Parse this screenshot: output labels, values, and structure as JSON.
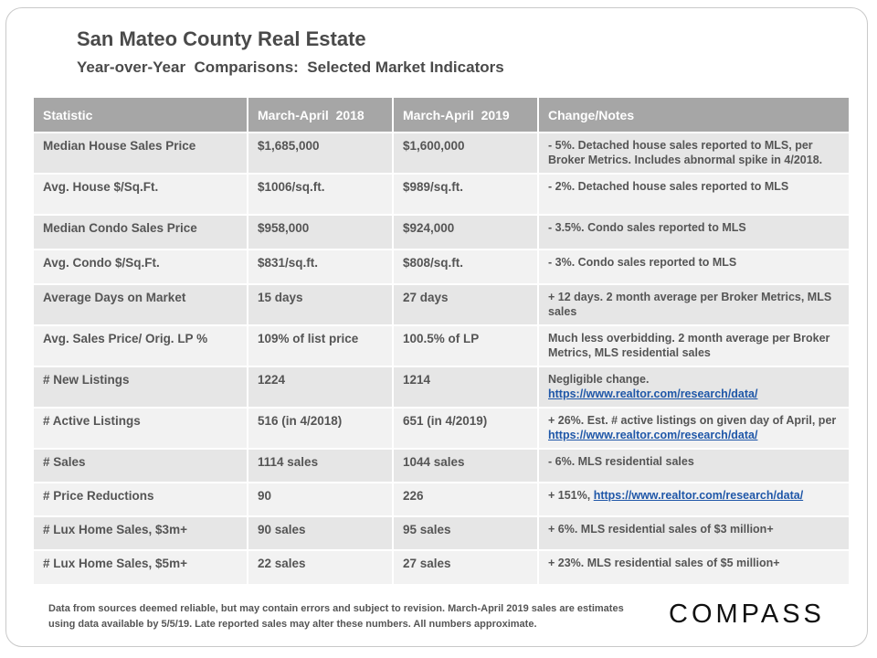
{
  "header": {
    "title": "San Mateo County Real Estate",
    "subtitle": "Year-over-Year  Comparisons:  Selected Market Indicators"
  },
  "table": {
    "columns": [
      "Statistic",
      "March-April  2018",
      "March-April  2019",
      "Change/Notes"
    ],
    "rows": [
      {
        "stat": "Median House Sales Price",
        "y2018": "$1,685,000",
        "y2019": "$1,600,000",
        "note": "- 5%. Detached house sales reported to MLS, per Broker Metrics. Includes abnormal spike in 4/2018.",
        "link": ""
      },
      {
        "stat": "Avg. House $/Sq.Ft.",
        "y2018": "$1006/sq.ft.",
        "y2019": "$989/sq.ft.",
        "note": "- 2%. Detached house sales reported to MLS",
        "link": ""
      },
      {
        "stat": "Median Condo Sales Price",
        "y2018": "$958,000",
        "y2019": "$924,000",
        "note": "- 3.5%. Condo sales reported to MLS",
        "link": ""
      },
      {
        "stat": "Avg. Condo $/Sq.Ft.",
        "y2018": "$831/sq.ft.",
        "y2019": "$808/sq.ft.",
        "note": "- 3%. Condo sales reported to MLS",
        "link": ""
      },
      {
        "stat": "Average Days on Market",
        "y2018": "15 days",
        "y2019": "27 days",
        "note": "+ 12 days. 2 month average per Broker Metrics, MLS sales",
        "link": ""
      },
      {
        "stat": "Avg. Sales Price/ Orig. LP %",
        "y2018": "109% of list price",
        "y2019": "100.5% of LP",
        "note": "Much less overbidding. 2 month average per Broker Metrics, MLS residential sales",
        "link": ""
      },
      {
        "stat": "# New Listings",
        "y2018": "1224",
        "y2019": "1214",
        "note": "Negligible change.",
        "link": "https://www.realtor.com/research/data/"
      },
      {
        "stat": "# Active Listings",
        "y2018": "516 (in 4/2018)",
        "y2019": "651 (in 4/2019)",
        "note": "+ 26%. Est. # active listings on given day of April, per",
        "link": "https://www.realtor.com/research/data/"
      },
      {
        "stat": "# Sales",
        "y2018": "1114 sales",
        "y2019": "1044 sales",
        "note": "- 6%. MLS residential sales",
        "link": ""
      },
      {
        "stat": "# Price Reductions",
        "y2018": "90",
        "y2019": "226",
        "note": "+ 151%,",
        "link": "https://www.realtor.com/research/data/"
      },
      {
        "stat": "# Lux Home Sales, $3m+",
        "y2018": "90 sales",
        "y2019": "95 sales",
        "note": "+ 6%. MLS residential sales of $3 million+",
        "link": ""
      },
      {
        "stat": "# Lux Home Sales, $5m+",
        "y2018": "22 sales",
        "y2019": "27 sales",
        "note": "+ 23%. MLS residential sales of $5 million+",
        "link": ""
      }
    ]
  },
  "footer": {
    "disclaimer": "Data from sources deemed reliable, but may contain errors and subject to revision. March-April 2019 sales are estimates using data available  by 5/5/19. Late reported sales may alter these numbers. All numbers approximate.",
    "logo": "COMPASS"
  }
}
